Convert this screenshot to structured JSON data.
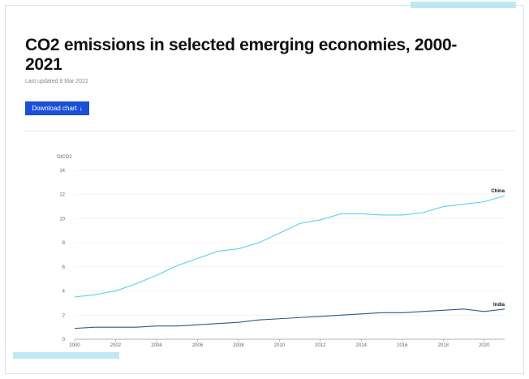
{
  "header": {
    "title": "CO2 emissions in selected emerging economies, 2000-2021",
    "last_updated": "Last updated 8 Mar 2022",
    "download_label": "Download chart",
    "download_icon": "arrow-down-icon"
  },
  "colors": {
    "accent_button": "#1a4fd6",
    "china": "#5ccfee",
    "india": "#2b5a8a",
    "decoration": "#bfe9f1"
  },
  "chart_data": {
    "type": "line",
    "title": "CO2 emissions in selected emerging economies, 2000-2021",
    "ylabel": "GtCO2",
    "xlabel": "",
    "ylim": [
      0,
      14
    ],
    "xlim": [
      2000,
      2021
    ],
    "grid": true,
    "x_ticks": [
      "2000",
      "2002",
      "2004",
      "2006",
      "2008",
      "2010",
      "2012",
      "2014",
      "2016",
      "2018",
      "2020"
    ],
    "y_ticks": [
      "0",
      "2",
      "4",
      "6",
      "8",
      "10",
      "12",
      "14"
    ],
    "x": [
      2000,
      2001,
      2002,
      2003,
      2004,
      2005,
      2006,
      2007,
      2008,
      2009,
      2010,
      2011,
      2012,
      2013,
      2014,
      2015,
      2016,
      2017,
      2018,
      2019,
      2020,
      2021
    ],
    "series": [
      {
        "name": "China",
        "values": [
          3.5,
          3.7,
          4.0,
          4.6,
          5.3,
          6.1,
          6.7,
          7.3,
          7.5,
          8.0,
          8.8,
          9.6,
          9.9,
          10.4,
          10.4,
          10.3,
          10.3,
          10.5,
          11.0,
          11.2,
          11.4,
          11.9
        ]
      },
      {
        "name": "India",
        "values": [
          0.9,
          1.0,
          1.0,
          1.0,
          1.1,
          1.1,
          1.2,
          1.3,
          1.4,
          1.6,
          1.7,
          1.8,
          1.9,
          2.0,
          2.1,
          2.2,
          2.2,
          2.3,
          2.4,
          2.5,
          2.3,
          2.5
        ]
      }
    ]
  }
}
